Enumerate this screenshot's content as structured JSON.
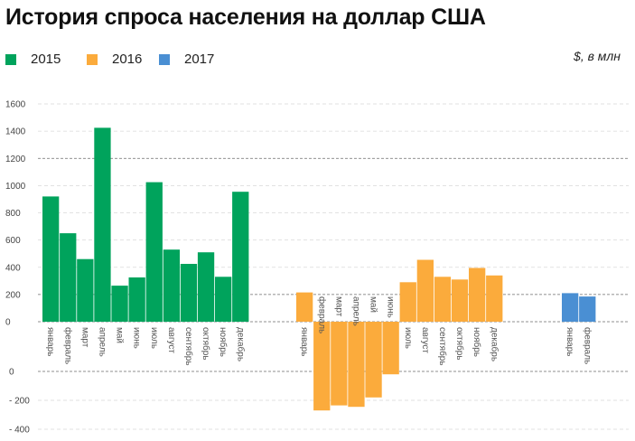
{
  "title": "История спроса населения на доллар США",
  "unit_label": "$, в млн",
  "colors": {
    "2015": "#00a35c",
    "2016": "#fbab3c",
    "2017": "#4a8fd3"
  },
  "legend": [
    {
      "label": "2015",
      "color": "#00a35c"
    },
    {
      "label": "2016",
      "color": "#fbab3c"
    },
    {
      "label": "2017",
      "color": "#4a8fd3"
    }
  ],
  "chart_data": {
    "type": "bar",
    "title": "История спроса населения на доллар США",
    "ylabel": "",
    "xlabel": "",
    "panels": [
      {
        "name": "upper",
        "ylim": [
          0,
          1600
        ],
        "yticks": [
          "1600",
          "1400",
          "1200",
          "1000",
          "800",
          "600",
          "400",
          "200",
          "0"
        ],
        "grid": true
      },
      {
        "name": "lower",
        "ylim": [
          -400,
          0
        ],
        "yticks": [
          "0",
          "- 200",
          "- 400"
        ],
        "grid": true
      }
    ],
    "series": [
      {
        "name": "2015",
        "color": "#00a35c",
        "categories": [
          "январь",
          "февраль",
          "март",
          "апрель",
          "май",
          "июнь",
          "июль",
          "август",
          "сентябрь",
          "октябрь",
          "ноябрь",
          "декабрь"
        ],
        "values": [
          920,
          650,
          460,
          1425,
          265,
          325,
          1025,
          530,
          425,
          510,
          330,
          955
        ]
      },
      {
        "name": "2016",
        "color": "#fbab3c",
        "categories": [
          "январь",
          "февраль",
          "март",
          "апрель",
          "май",
          "июнь",
          "июль",
          "август",
          "сентябрь",
          "октябрь",
          "ноябрь",
          "декабрь"
        ],
        "values": [
          215,
          -270,
          -235,
          -245,
          -180,
          -20,
          290,
          455,
          330,
          310,
          395,
          340
        ]
      },
      {
        "name": "2017",
        "color": "#4a8fd3",
        "categories": [
          "январь",
          "февраль"
        ],
        "values": [
          210,
          185
        ]
      }
    ]
  }
}
